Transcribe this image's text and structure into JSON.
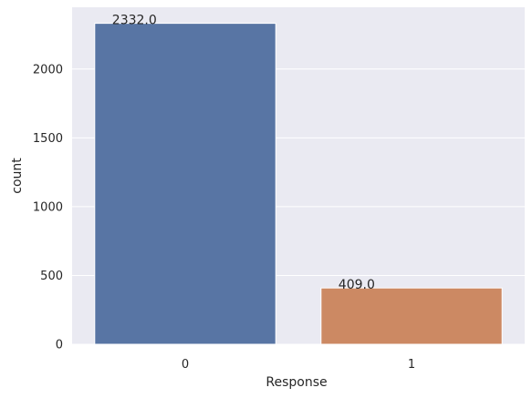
{
  "chart_data": {
    "type": "bar",
    "categories": [
      "0",
      "1"
    ],
    "values": [
      2332,
      409
    ],
    "data_labels": [
      "2332.0",
      "409.0"
    ],
    "xlabel": "Response",
    "ylabel": "count",
    "ylim": [
      0,
      2448.6
    ],
    "yticks": [
      0,
      500,
      1000,
      1500,
      2000
    ],
    "ytick_labels": [
      "0",
      "500",
      "1000",
      "1500",
      "2000"
    ],
    "grid": true,
    "bar_colors": [
      "#5875a4",
      "#cc8963"
    ],
    "background_color": "#eaeaf2",
    "grid_color": "#ffffff"
  }
}
